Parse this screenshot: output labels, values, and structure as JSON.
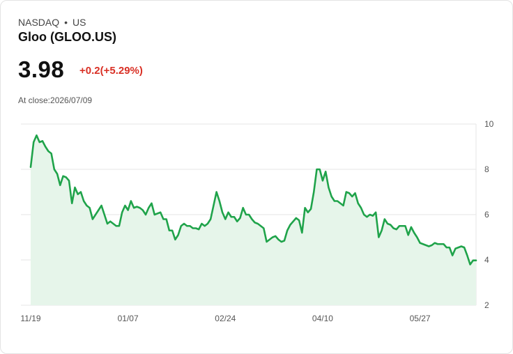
{
  "header": {
    "exchange": "NASDAQ",
    "separator": "•",
    "region": "US",
    "name": "Gloo (GLOO.US)",
    "price": "3.98",
    "change": "+0.2(+5.29%)",
    "close_label": "At close:",
    "close_date": "2026/07/09"
  },
  "colors": {
    "line": "#1fa34a",
    "fill": "#e6f5ea",
    "change": "#d93025",
    "grid": "#e6e6e6"
  },
  "chart_data": {
    "type": "area",
    "title": "",
    "xlabel": "",
    "ylabel": "",
    "ylim": [
      2,
      10
    ],
    "y_ticks": [
      2,
      4,
      6,
      8,
      10
    ],
    "x_ticks": [
      "11/19",
      "01/07",
      "02/24",
      "04/10",
      "05/27"
    ],
    "x_tick_index": [
      0,
      33,
      66,
      99,
      132
    ],
    "grid": true,
    "series": [
      {
        "values": [
          8.1,
          9.2,
          9.5,
          9.2,
          9.25,
          9.0,
          8.8,
          8.7,
          8.0,
          7.8,
          7.3,
          7.7,
          7.65,
          7.5,
          6.5,
          7.2,
          6.9,
          7.0,
          6.6,
          6.4,
          6.3,
          5.8,
          6.0,
          6.2,
          6.4,
          6.0,
          5.6,
          5.7,
          5.6,
          5.5,
          5.5,
          6.1,
          6.4,
          6.2,
          6.6,
          6.3,
          6.35,
          6.3,
          6.2,
          6.0,
          6.3,
          6.5,
          6.0,
          6.05,
          6.1,
          5.8,
          5.8,
          5.3,
          5.3,
          4.9,
          5.1,
          5.5,
          5.6,
          5.5,
          5.5,
          5.4,
          5.4,
          5.35,
          5.6,
          5.5,
          5.6,
          5.8,
          6.4,
          7.0,
          6.6,
          6.1,
          5.8,
          6.1,
          5.9,
          5.9,
          5.7,
          5.85,
          6.3,
          6.0,
          6.0,
          5.8,
          5.65,
          5.6,
          5.5,
          5.4,
          4.8,
          4.9,
          5.0,
          5.05,
          4.9,
          4.8,
          4.85,
          5.3,
          5.55,
          5.7,
          5.85,
          5.75,
          5.2,
          6.3,
          6.1,
          6.25,
          7.0,
          8.0,
          8.0,
          7.5,
          7.9,
          7.2,
          6.8,
          6.6,
          6.6,
          6.5,
          6.4,
          7.0,
          6.95,
          6.8,
          6.95,
          6.5,
          6.3,
          6.0,
          5.9,
          6.0,
          5.95,
          6.1,
          5.0,
          5.3,
          5.8,
          5.6,
          5.55,
          5.4,
          5.35,
          5.5,
          5.5,
          5.5,
          5.1,
          5.45,
          5.2,
          5.0,
          4.75,
          4.7,
          4.65,
          4.6,
          4.65,
          4.75,
          4.7,
          4.7,
          4.7,
          4.55,
          4.55,
          4.2,
          4.5,
          4.55,
          4.6,
          4.55,
          4.2,
          3.8,
          3.98,
          3.98
        ]
      }
    ]
  }
}
